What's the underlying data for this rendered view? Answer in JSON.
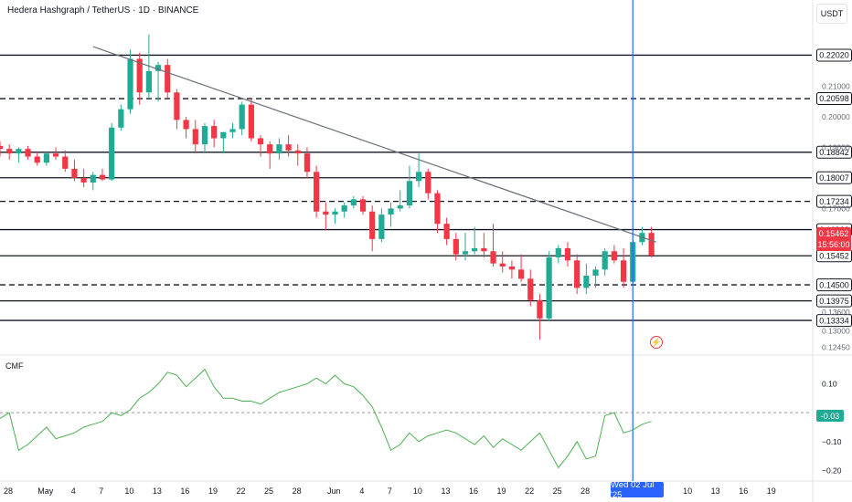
{
  "header": {
    "title": "Hedera Hashgraph / TetherUS · 1D · BINANCE",
    "unit": "USDT"
  },
  "chart_data": [
    {
      "type": "candlestick",
      "title": "Hedera Hashgraph / TetherUS · 1D · BINANCE",
      "ylabel": "USDT",
      "ylim": [
        0.1235,
        0.2305
      ],
      "x_tick_labels": [
        "28",
        "May",
        "4",
        "7",
        "10",
        "13",
        "16",
        "19",
        "22",
        "25",
        "28",
        "Jun",
        "4",
        "7",
        "10",
        "13",
        "16",
        "19",
        "22",
        "25",
        "28",
        "Wed 02 Jul '25",
        "7",
        "10",
        "13",
        "16",
        "19"
      ],
      "y_tick_labels": [
        "0.21000",
        "0.20000",
        "0.19000",
        "0.17000",
        "0.16000",
        "0.13600",
        "0.13000",
        "0.12450"
      ],
      "candles": [
        {
          "o": 0.1905,
          "h": 0.192,
          "l": 0.187,
          "c": 0.1895
        },
        {
          "o": 0.1895,
          "h": 0.191,
          "l": 0.186,
          "c": 0.188
        },
        {
          "o": 0.188,
          "h": 0.19,
          "l": 0.185,
          "c": 0.1895
        },
        {
          "o": 0.1895,
          "h": 0.1905,
          "l": 0.186,
          "c": 0.187
        },
        {
          "o": 0.187,
          "h": 0.1885,
          "l": 0.184,
          "c": 0.185
        },
        {
          "o": 0.185,
          "h": 0.1885,
          "l": 0.184,
          "c": 0.188
        },
        {
          "o": 0.188,
          "h": 0.19,
          "l": 0.186,
          "c": 0.187
        },
        {
          "o": 0.187,
          "h": 0.189,
          "l": 0.182,
          "c": 0.183
        },
        {
          "o": 0.183,
          "h": 0.186,
          "l": 0.179,
          "c": 0.18
        },
        {
          "o": 0.18,
          "h": 0.183,
          "l": 0.177,
          "c": 0.1785
        },
        {
          "o": 0.1785,
          "h": 0.182,
          "l": 0.176,
          "c": 0.181
        },
        {
          "o": 0.181,
          "h": 0.183,
          "l": 0.179,
          "c": 0.1795
        },
        {
          "o": 0.1795,
          "h": 0.198,
          "l": 0.179,
          "c": 0.1965
        },
        {
          "o": 0.1965,
          "h": 0.204,
          "l": 0.1955,
          "c": 0.2025
        },
        {
          "o": 0.2025,
          "h": 0.222,
          "l": 0.201,
          "c": 0.219
        },
        {
          "o": 0.219,
          "h": 0.221,
          "l": 0.204,
          "c": 0.208
        },
        {
          "o": 0.208,
          "h": 0.227,
          "l": 0.206,
          "c": 0.215
        },
        {
          "o": 0.215,
          "h": 0.218,
          "l": 0.205,
          "c": 0.217
        },
        {
          "o": 0.217,
          "h": 0.219,
          "l": 0.206,
          "c": 0.208
        },
        {
          "o": 0.208,
          "h": 0.209,
          "l": 0.196,
          "c": 0.199
        },
        {
          "o": 0.199,
          "h": 0.2,
          "l": 0.193,
          "c": 0.196
        },
        {
          "o": 0.196,
          "h": 0.199,
          "l": 0.188,
          "c": 0.191
        },
        {
          "o": 0.191,
          "h": 0.198,
          "l": 0.188,
          "c": 0.197
        },
        {
          "o": 0.197,
          "h": 0.199,
          "l": 0.19,
          "c": 0.193
        },
        {
          "o": 0.193,
          "h": 0.195,
          "l": 0.188,
          "c": 0.195
        },
        {
          "o": 0.195,
          "h": 0.198,
          "l": 0.193,
          "c": 0.196
        },
        {
          "o": 0.196,
          "h": 0.205,
          "l": 0.194,
          "c": 0.204
        },
        {
          "o": 0.204,
          "h": 0.206,
          "l": 0.192,
          "c": 0.193
        },
        {
          "o": 0.193,
          "h": 0.194,
          "l": 0.187,
          "c": 0.191
        },
        {
          "o": 0.191,
          "h": 0.192,
          "l": 0.183,
          "c": 0.188
        },
        {
          "o": 0.188,
          "h": 0.193,
          "l": 0.186,
          "c": 0.191
        },
        {
          "o": 0.191,
          "h": 0.194,
          "l": 0.187,
          "c": 0.189
        },
        {
          "o": 0.189,
          "h": 0.191,
          "l": 0.184,
          "c": 0.188
        },
        {
          "o": 0.188,
          "h": 0.19,
          "l": 0.18,
          "c": 0.182
        },
        {
          "o": 0.182,
          "h": 0.184,
          "l": 0.167,
          "c": 0.169
        },
        {
          "o": 0.169,
          "h": 0.172,
          "l": 0.163,
          "c": 0.168
        },
        {
          "o": 0.168,
          "h": 0.17,
          "l": 0.165,
          "c": 0.169
        },
        {
          "o": 0.169,
          "h": 0.172,
          "l": 0.167,
          "c": 0.171
        },
        {
          "o": 0.171,
          "h": 0.174,
          "l": 0.17,
          "c": 0.173
        },
        {
          "o": 0.173,
          "h": 0.174,
          "l": 0.168,
          "c": 0.169
        },
        {
          "o": 0.169,
          "h": 0.171,
          "l": 0.156,
          "c": 0.16
        },
        {
          "o": 0.16,
          "h": 0.17,
          "l": 0.159,
          "c": 0.168
        },
        {
          "o": 0.168,
          "h": 0.172,
          "l": 0.164,
          "c": 0.17
        },
        {
          "o": 0.17,
          "h": 0.176,
          "l": 0.169,
          "c": 0.171
        },
        {
          "o": 0.171,
          "h": 0.184,
          "l": 0.17,
          "c": 0.179
        },
        {
          "o": 0.179,
          "h": 0.188,
          "l": 0.177,
          "c": 0.182
        },
        {
          "o": 0.182,
          "h": 0.183,
          "l": 0.173,
          "c": 0.175
        },
        {
          "o": 0.175,
          "h": 0.176,
          "l": 0.162,
          "c": 0.165
        },
        {
          "o": 0.165,
          "h": 0.167,
          "l": 0.158,
          "c": 0.16
        },
        {
          "o": 0.16,
          "h": 0.162,
          "l": 0.153,
          "c": 0.155
        },
        {
          "o": 0.155,
          "h": 0.162,
          "l": 0.153,
          "c": 0.156
        },
        {
          "o": 0.156,
          "h": 0.164,
          "l": 0.155,
          "c": 0.157
        },
        {
          "o": 0.157,
          "h": 0.162,
          "l": 0.154,
          "c": 0.156
        },
        {
          "o": 0.156,
          "h": 0.165,
          "l": 0.151,
          "c": 0.152
        },
        {
          "o": 0.152,
          "h": 0.156,
          "l": 0.149,
          "c": 0.151
        },
        {
          "o": 0.151,
          "h": 0.153,
          "l": 0.147,
          "c": 0.15
        },
        {
          "o": 0.15,
          "h": 0.155,
          "l": 0.146,
          "c": 0.147
        },
        {
          "o": 0.147,
          "h": 0.15,
          "l": 0.138,
          "c": 0.14
        },
        {
          "o": 0.14,
          "h": 0.142,
          "l": 0.127,
          "c": 0.134
        },
        {
          "o": 0.134,
          "h": 0.156,
          "l": 0.133,
          "c": 0.154
        },
        {
          "o": 0.154,
          "h": 0.158,
          "l": 0.152,
          "c": 0.157
        },
        {
          "o": 0.157,
          "h": 0.159,
          "l": 0.151,
          "c": 0.153
        },
        {
          "o": 0.153,
          "h": 0.155,
          "l": 0.142,
          "c": 0.144
        },
        {
          "o": 0.144,
          "h": 0.152,
          "l": 0.142,
          "c": 0.148
        },
        {
          "o": 0.148,
          "h": 0.151,
          "l": 0.144,
          "c": 0.15
        },
        {
          "o": 0.15,
          "h": 0.157,
          "l": 0.148,
          "c": 0.156
        },
        {
          "o": 0.156,
          "h": 0.158,
          "l": 0.152,
          "c": 0.153
        },
        {
          "o": 0.153,
          "h": 0.157,
          "l": 0.144,
          "c": 0.146
        },
        {
          "o": 0.146,
          "h": 0.16,
          "l": 0.145,
          "c": 0.159
        },
        {
          "o": 0.159,
          "h": 0.164,
          "l": 0.158,
          "c": 0.162
        },
        {
          "o": 0.162,
          "h": 0.164,
          "l": 0.154,
          "c": 0.1546
        }
      ],
      "horizontal_levels": [
        {
          "value": 0.2202,
          "label": "0.22020",
          "style": "solid"
        },
        {
          "value": 0.20598,
          "label": "0.20598",
          "style": "dashed"
        },
        {
          "value": 0.18842,
          "label": "0.18842",
          "style": "solid"
        },
        {
          "value": 0.18007,
          "label": "0.18007",
          "style": "solid"
        },
        {
          "value": 0.17234,
          "label": "0.17234",
          "style": "dashed"
        },
        {
          "value": 0.16308,
          "label": "0.16308",
          "style": "solid"
        },
        {
          "value": 0.15452,
          "label": "0.15452",
          "style": "solid"
        },
        {
          "value": 0.145,
          "label": "0.14500",
          "style": "dashed"
        },
        {
          "value": 0.13975,
          "label": "0.13975",
          "style": "solid"
        },
        {
          "value": 0.13334,
          "label": "0.13334",
          "style": "solid"
        }
      ],
      "trendline": {
        "from": {
          "candle": 10,
          "value": 0.223
        },
        "to": {
          "candle": 70.5,
          "value": 0.159
        }
      },
      "current_price": {
        "value": "0.15462",
        "countdown": "15:56:00"
      },
      "highlight_date": "Wed 02 Jul '25",
      "highlight_candle": 68,
      "colors": {
        "up": "#22ab94",
        "down": "#f23645",
        "level": "#131722",
        "trend": "#6b6f7b",
        "highlight": "#2962ff"
      }
    },
    {
      "type": "line",
      "title": "CMF",
      "ylim": [
        -0.23,
        0.19
      ],
      "y_tick_labels": [
        "0.10",
        "0.00",
        "−0.10",
        "−0.20"
      ],
      "zero_line": true,
      "current_value": "-0.03",
      "series": [
        {
          "color": "#4caf50",
          "values": [
            -0.02,
            0.0,
            -0.13,
            -0.11,
            -0.08,
            -0.05,
            -0.09,
            -0.08,
            -0.07,
            -0.05,
            -0.04,
            -0.03,
            0.0,
            -0.01,
            0.01,
            0.05,
            0.07,
            0.1,
            0.14,
            0.13,
            0.09,
            0.12,
            0.15,
            0.09,
            0.05,
            0.05,
            0.04,
            0.04,
            0.03,
            0.05,
            0.07,
            0.08,
            0.09,
            0.1,
            0.12,
            0.1,
            0.13,
            0.1,
            0.09,
            0.06,
            0.02,
            -0.05,
            -0.13,
            -0.11,
            -0.07,
            -0.1,
            -0.08,
            -0.07,
            -0.06,
            -0.07,
            -0.09,
            -0.11,
            -0.08,
            -0.12,
            -0.09,
            -0.11,
            -0.13,
            -0.1,
            -0.07,
            -0.13,
            -0.19,
            -0.15,
            -0.1,
            -0.16,
            -0.15,
            -0.01,
            0.0,
            -0.07,
            -0.06,
            -0.04,
            -0.03
          ]
        }
      ]
    }
  ]
}
